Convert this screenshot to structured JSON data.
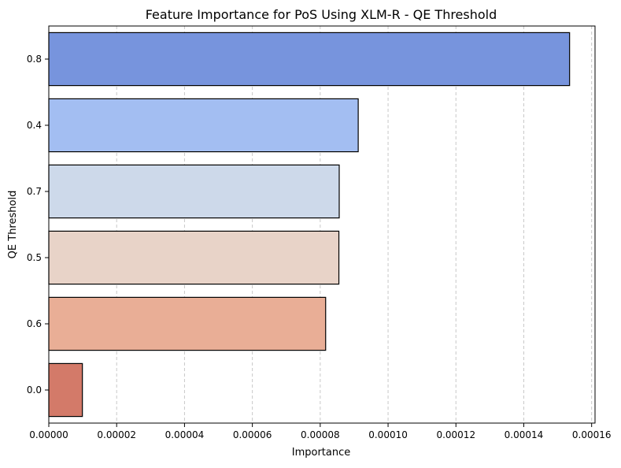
{
  "chart_data": {
    "type": "bar",
    "orientation": "horizontal",
    "title": "Feature Importance for PoS Using XLM-R - QE Threshold",
    "xlabel": "Importance",
    "ylabel": "QE Threshold",
    "categories": [
      "0.8",
      "0.4",
      "0.7",
      "0.5",
      "0.6",
      "0.0"
    ],
    "values": [
      0.0001535,
      9.12e-05,
      8.56e-05,
      8.55e-05,
      8.16e-05,
      9.9e-06
    ],
    "colors": [
      "#7794dd",
      "#a3bef2",
      "#cdd9ea",
      "#e8d3c8",
      "#e9ae96",
      "#d37a69"
    ],
    "xlim": [
      0,
      0.000161
    ],
    "xticks": [
      0,
      2e-05,
      4e-05,
      6e-05,
      8e-05,
      0.0001,
      0.00012,
      0.00014,
      0.00016
    ],
    "xtick_labels": [
      "0.00000",
      "0.00002",
      "0.00004",
      "0.00006",
      "0.00008",
      "0.00010",
      "0.00012",
      "0.00014",
      "0.00016"
    ],
    "grid": "x-dashed",
    "bar_edge_color": "#000000",
    "grid_color": "#c8c8c8"
  }
}
